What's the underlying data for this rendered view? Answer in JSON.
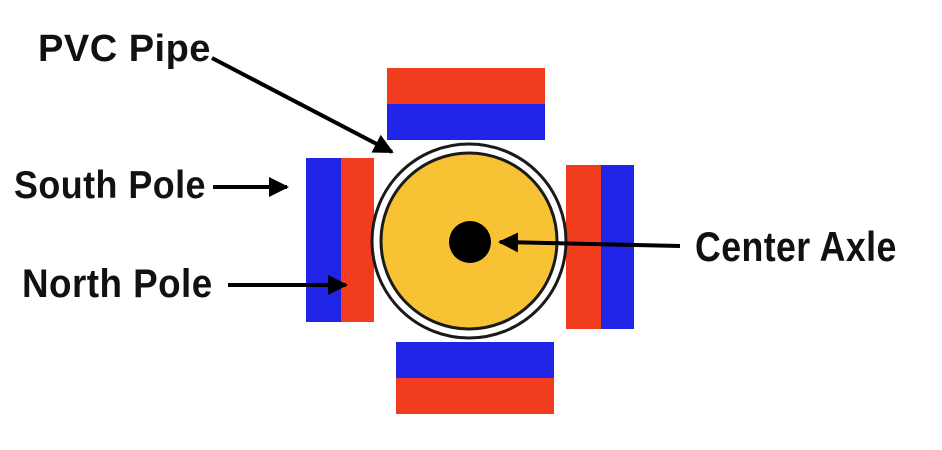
{
  "labels": {
    "pvc_pipe": "PVC Pipe",
    "south_pole": "South Pole",
    "north_pole": "North Pole",
    "center_axle": "Center Axle"
  },
  "colors": {
    "south_pole": "#1f24e6",
    "north_pole": "#f23c1e",
    "rotor_fill": "#f7c233",
    "axle": "#000000",
    "outline": "#1a1a1a",
    "arrow": "#000000"
  }
}
